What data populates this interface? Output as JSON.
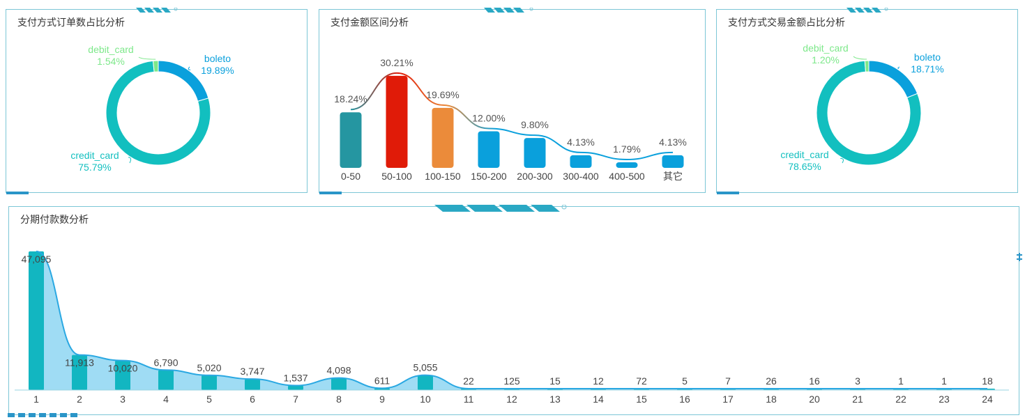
{
  "panels": {
    "order_share": {
      "title": "支付方式订单数占比分析"
    },
    "amount_range": {
      "title": "支付金额区间分析"
    },
    "amount_share": {
      "title": "支付方式交易金额占比分析"
    },
    "installments": {
      "title": "分期付款数分析"
    }
  },
  "chart_data": [
    {
      "type": "pie",
      "donut": true,
      "title": "支付方式订单数占比分析",
      "slices": [
        {
          "label": "boleto",
          "value": 19.89,
          "display": "19.89%",
          "color": "#0aa0dc"
        },
        {
          "label": "credit_card",
          "value": 75.79,
          "display": "75.79%",
          "color": "#12bfbf"
        },
        {
          "label": "debit_card",
          "value": 1.54,
          "display": "1.54%",
          "color": "#7de88a"
        }
      ]
    },
    {
      "type": "bar",
      "title": "支付金额区间分析",
      "categories": [
        "0-50",
        "50-100",
        "100-150",
        "150-200",
        "200-300",
        "300-400",
        "400-500",
        "其它"
      ],
      "values": [
        18.24,
        30.21,
        19.69,
        12.0,
        9.8,
        4.13,
        1.79,
        4.13
      ],
      "labels": [
        "18.24%",
        "30.21%",
        "19.69%",
        "12.00%",
        "9.80%",
        "4.13%",
        "1.79%",
        "4.13%"
      ],
      "colors": [
        "#2596a1",
        "#e01b08",
        "#eb8b3a",
        "#0aa0dc",
        "#0aa0dc",
        "#0aa0dc",
        "#0aa0dc",
        "#0aa0dc"
      ],
      "overlay_line": true,
      "ylim": [
        0,
        32
      ]
    },
    {
      "type": "pie",
      "donut": true,
      "title": "支付方式交易金额占比分析",
      "slices": [
        {
          "label": "boleto",
          "value": 18.71,
          "display": "18.71%",
          "color": "#0aa0dc"
        },
        {
          "label": "credit_card",
          "value": 78.65,
          "display": "78.65%",
          "color": "#12bfbf"
        },
        {
          "label": "debit_card",
          "value": 1.2,
          "display": "1.20%",
          "color": "#7de88a"
        }
      ]
    },
    {
      "type": "bar",
      "title": "分期付款数分析",
      "categories": [
        "1",
        "2",
        "3",
        "4",
        "5",
        "6",
        "7",
        "8",
        "9",
        "10",
        "11",
        "12",
        "13",
        "14",
        "15",
        "16",
        "17",
        "18",
        "20",
        "21",
        "22",
        "23",
        "24"
      ],
      "values": [
        47095,
        11913,
        10020,
        6790,
        5020,
        3747,
        1537,
        4098,
        611,
        5055,
        22,
        125,
        15,
        12,
        72,
        5,
        7,
        26,
        16,
        3,
        1,
        1,
        18
      ],
      "labels": [
        "47,095",
        "11,913",
        "10,020",
        "6,790",
        "5,020",
        "3,747",
        "1,537",
        "4,098",
        "611",
        "5,055",
        "22",
        "125",
        "15",
        "12",
        "72",
        "5",
        "7",
        "26",
        "16",
        "3",
        "1",
        "1",
        "18"
      ],
      "bar_color": "#12b6c1",
      "area_color": "#7fd0f0",
      "line_color": "#2aa8e2",
      "overlay_area": true,
      "ylim": [
        0,
        48000
      ]
    }
  ]
}
